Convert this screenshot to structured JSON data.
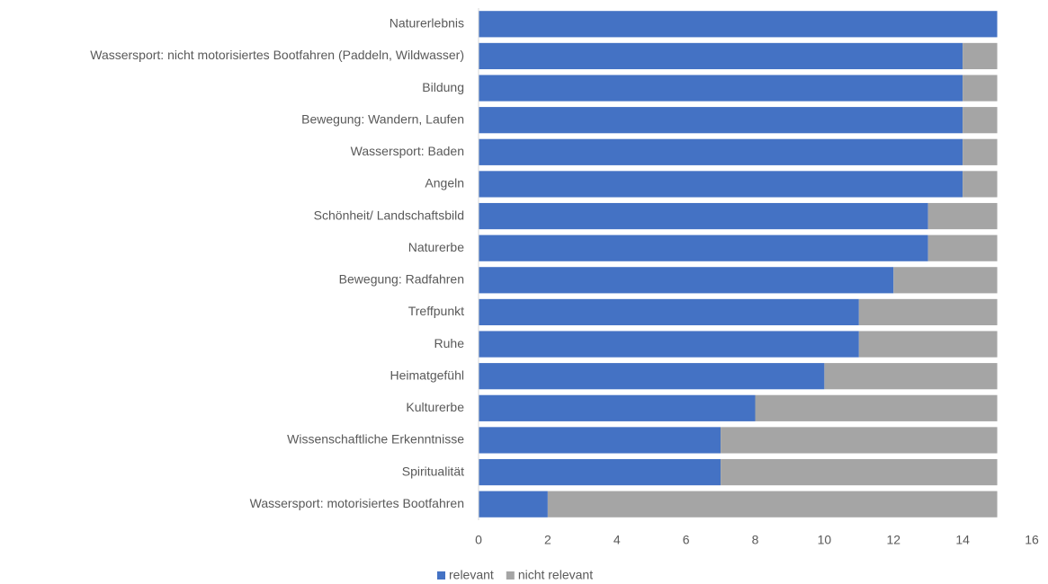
{
  "chart_data": {
    "type": "stacked_barh",
    "categories": [
      "Naturerlebnis",
      "Wassersport: nicht motorisiertes Bootfahren (Paddeln,  Wildwasser)",
      "Bildung",
      "Bewegung: Wandern, Laufen",
      "Wassersport: Baden",
      "Angeln",
      "Schönheit/ Landschaftsbild",
      "Naturerbe",
      "Bewegung: Radfahren",
      "Treffpunkt",
      "Ruhe",
      "Heimatgefühl",
      "Kulturerbe",
      "Wissenschaftliche Erkenntnisse",
      "Spiritualität",
      "Wassersport: motorisiertes Bootfahren"
    ],
    "series": [
      {
        "name": "relevant",
        "color": "#4472c4",
        "values": [
          15,
          14,
          14,
          14,
          14,
          14,
          13,
          13,
          12,
          11,
          11,
          10,
          8,
          7,
          7,
          2
        ]
      },
      {
        "name": "nicht relevant",
        "color": "#a5a5a5",
        "values": [
          0,
          1,
          1,
          1,
          1,
          1,
          2,
          2,
          3,
          4,
          4,
          5,
          7,
          8,
          8,
          13
        ]
      }
    ],
    "xlim": [
      0,
      16
    ],
    "xticks": [
      0,
      2,
      4,
      6,
      8,
      10,
      12,
      14,
      16
    ],
    "grid": false,
    "legend": "bottom"
  }
}
